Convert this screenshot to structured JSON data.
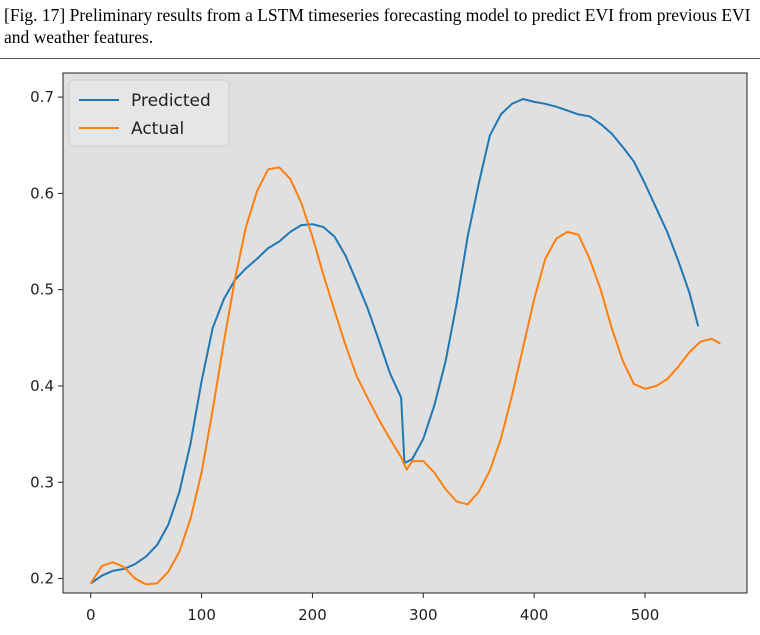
{
  "caption": "[Fig. 17] Preliminary results from a LSTM timeseries forecasting model to predict EVI from previous EVI and weather features.",
  "chart_data": {
    "type": "line",
    "xlim": [
      -25,
      592
    ],
    "ylim": [
      0.185,
      0.725
    ],
    "x_ticks": [
      0,
      100,
      200,
      300,
      400,
      500
    ],
    "y_ticks": [
      0.2,
      0.3,
      0.4,
      0.5,
      0.6,
      0.7
    ],
    "x_tick_labels": [
      "0",
      "100",
      "200",
      "300",
      "400",
      "500"
    ],
    "y_tick_labels": [
      "0.2",
      "0.3",
      "0.4",
      "0.5",
      "0.6",
      "0.7"
    ],
    "grid": false,
    "legend_position": "top-left",
    "plot_background": "#e0e0e0",
    "series": [
      {
        "name": "Predicted",
        "color": "#1f77b4",
        "x": [
          0,
          10,
          20,
          30,
          40,
          50,
          60,
          70,
          80,
          90,
          100,
          110,
          120,
          130,
          140,
          150,
          160,
          170,
          180,
          190,
          200,
          210,
          220,
          230,
          240,
          250,
          260,
          270,
          280,
          283,
          290,
          300,
          310,
          320,
          330,
          340,
          350,
          360,
          370,
          380,
          390,
          400,
          410,
          420,
          430,
          440,
          450,
          460,
          470,
          480,
          490,
          500,
          510,
          520,
          530,
          540,
          548
        ],
        "y": [
          0.195,
          0.203,
          0.208,
          0.21,
          0.215,
          0.223,
          0.235,
          0.256,
          0.29,
          0.34,
          0.405,
          0.46,
          0.49,
          0.51,
          0.522,
          0.532,
          0.543,
          0.55,
          0.56,
          0.567,
          0.568,
          0.565,
          0.555,
          0.535,
          0.508,
          0.48,
          0.447,
          0.413,
          0.388,
          0.32,
          0.324,
          0.345,
          0.38,
          0.425,
          0.485,
          0.555,
          0.61,
          0.66,
          0.682,
          0.693,
          0.698,
          0.695,
          0.693,
          0.69,
          0.686,
          0.682,
          0.68,
          0.672,
          0.662,
          0.648,
          0.633,
          0.61,
          0.585,
          0.56,
          0.53,
          0.497,
          0.462
        ]
      },
      {
        "name": "Actual",
        "color": "#ff7f0e",
        "x": [
          0,
          10,
          20,
          30,
          40,
          50,
          60,
          70,
          80,
          90,
          100,
          110,
          120,
          130,
          140,
          150,
          160,
          170,
          180,
          190,
          200,
          210,
          220,
          230,
          240,
          250,
          260,
          270,
          280,
          285,
          290,
          300,
          310,
          320,
          330,
          340,
          350,
          360,
          370,
          380,
          390,
          400,
          410,
          420,
          430,
          440,
          450,
          460,
          470,
          480,
          490,
          500,
          510,
          520,
          530,
          540,
          550,
          560,
          568
        ],
        "y": [
          0.195,
          0.213,
          0.217,
          0.212,
          0.2,
          0.194,
          0.195,
          0.207,
          0.228,
          0.262,
          0.31,
          0.375,
          0.445,
          0.51,
          0.565,
          0.602,
          0.625,
          0.627,
          0.615,
          0.59,
          0.555,
          0.515,
          0.478,
          0.442,
          0.41,
          0.387,
          0.365,
          0.345,
          0.326,
          0.313,
          0.322,
          0.322,
          0.31,
          0.293,
          0.28,
          0.277,
          0.29,
          0.312,
          0.345,
          0.39,
          0.44,
          0.49,
          0.532,
          0.553,
          0.56,
          0.557,
          0.532,
          0.5,
          0.46,
          0.426,
          0.402,
          0.397,
          0.4,
          0.407,
          0.42,
          0.435,
          0.446,
          0.449,
          0.444
        ]
      }
    ]
  }
}
